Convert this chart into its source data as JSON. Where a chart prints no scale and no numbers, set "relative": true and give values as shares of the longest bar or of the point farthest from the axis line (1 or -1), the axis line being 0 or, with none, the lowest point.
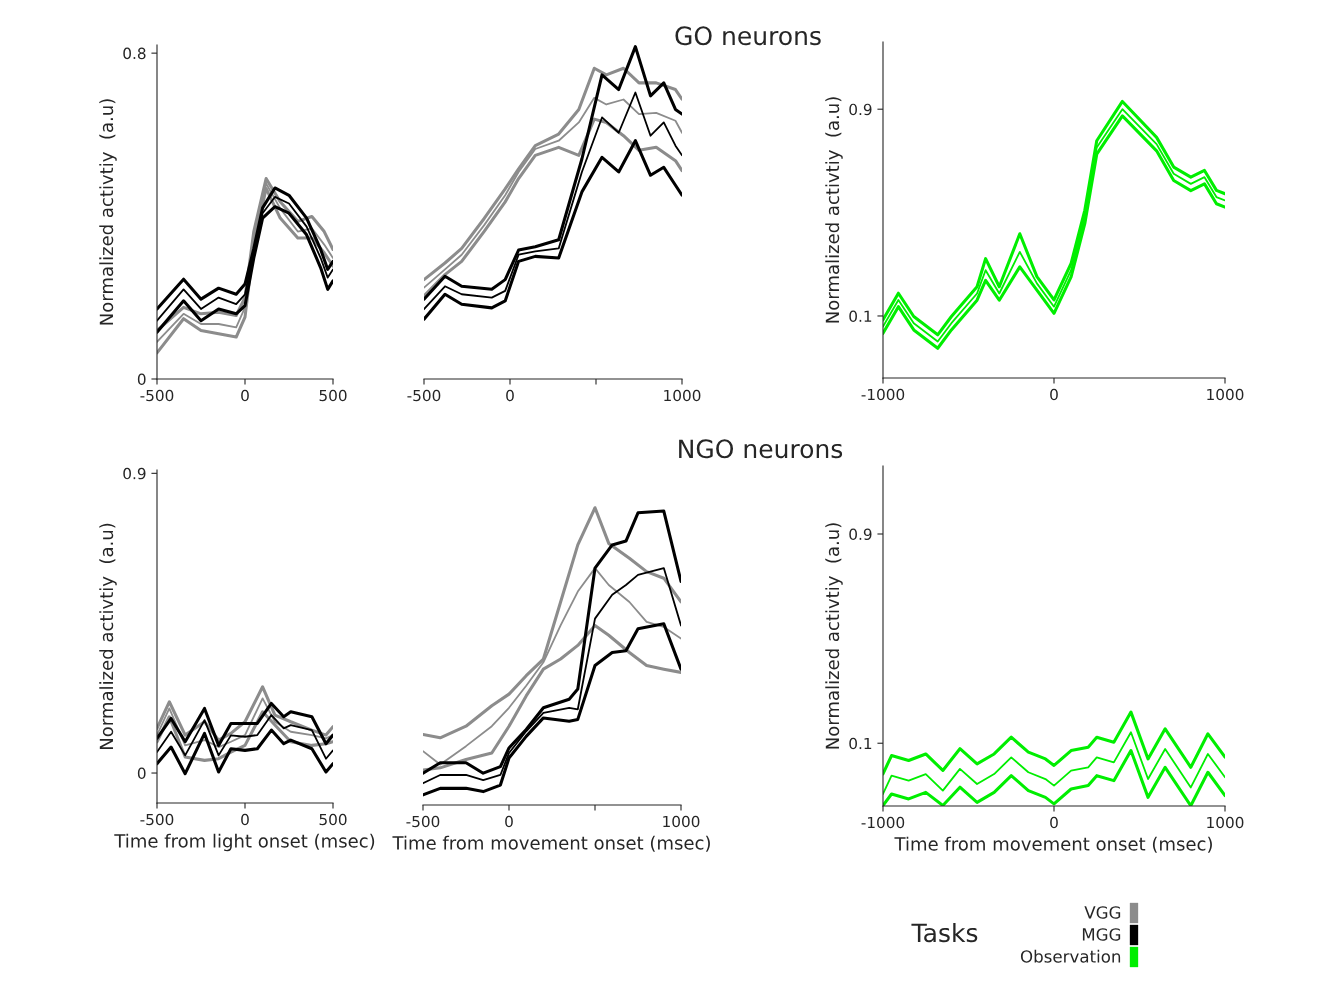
{
  "chart_data": [
    {
      "type": "line",
      "ylabel": "Normalized activtiy  (a.u)",
      "xlim": [
        -500,
        500
      ],
      "ylim": [
        0,
        0.82
      ],
      "xticks": [
        -500,
        0,
        500
      ],
      "yticks": [
        0,
        0.8
      ],
      "grid": false,
      "legend": "bottom right",
      "legend_title": "Tasks",
      "series": [
        {
          "name": "VGG",
          "color": "#8c8c8c",
          "x": [
            -500,
            -349,
            -250,
            -150,
            -50,
            0,
            50,
            120,
            200,
            300,
            380,
            450,
            500
          ],
          "values": [
            0.091,
            0.16,
            0.135,
            0.135,
            0.127,
            0.176,
            0.346,
            0.48,
            0.419,
            0.362,
            0.37,
            0.33,
            0.297
          ]
        },
        {
          "color": "#8c8c8c",
          "x": [
            -500,
            -349,
            -250,
            -150,
            -50,
            0,
            50,
            120,
            200,
            300,
            380,
            450,
            500
          ],
          "values": [
            0.064,
            0.148,
            0.119,
            0.111,
            0.103,
            0.152,
            0.33,
            0.468,
            0.395,
            0.346,
            0.346,
            0.31,
            0.277
          ]
        },
        {
          "color": "#8c8c8c",
          "x": [
            -500,
            -349,
            -250,
            -150,
            -50,
            0,
            50,
            120,
            200,
            300,
            380,
            450,
            500
          ],
          "values": [
            0.119,
            0.176,
            0.16,
            0.164,
            0.156,
            0.2,
            0.362,
            0.492,
            0.435,
            0.387,
            0.399,
            0.362,
            0.318
          ]
        },
        {
          "name": "MGG",
          "color": "#000000",
          "x": [
            -500,
            -349,
            -250,
            -150,
            -50,
            0,
            50,
            100,
            170,
            250,
            350,
            430,
            470,
            500
          ],
          "values": [
            0.143,
            0.22,
            0.172,
            0.2,
            0.184,
            0.208,
            0.314,
            0.407,
            0.447,
            0.431,
            0.374,
            0.297,
            0.249,
            0.269
          ]
        },
        {
          "color": "#000000",
          "x": [
            -500,
            -349,
            -250,
            -150,
            -50,
            0,
            50,
            100,
            170,
            250,
            350,
            430,
            470,
            500
          ],
          "values": [
            0.115,
            0.192,
            0.143,
            0.172,
            0.16,
            0.18,
            0.297,
            0.395,
            0.423,
            0.407,
            0.354,
            0.273,
            0.22,
            0.241
          ]
        },
        {
          "color": "#000000",
          "x": [
            -500,
            -349,
            -250,
            -150,
            -50,
            0,
            50,
            100,
            170,
            250,
            350,
            430,
            470,
            500
          ],
          "values": [
            0.172,
            0.245,
            0.196,
            0.223,
            0.208,
            0.233,
            0.32,
            0.42,
            0.469,
            0.451,
            0.395,
            0.318,
            0.269,
            0.289
          ]
        }
      ]
    },
    {
      "type": "line",
      "title": "GO neurons",
      "relative": true,
      "xlim": [
        -500,
        1000
      ],
      "xticks": [
        -500,
        0,
        {
          "value": 500,
          "label": null
        },
        1000
      ],
      "tick_labels": "x",
      "grid": false,
      "series": [
        {
          "name": "VGG",
          "color": "#8c8c8c",
          "x": [
            -500,
            -378,
            -281,
            -150,
            -28,
            50,
            147,
            283,
            400,
            490,
            560,
            660,
            750,
            850,
            962,
            1000
          ],
          "values": [
            0.275,
            0.33,
            0.374,
            0.463,
            0.553,
            0.623,
            0.692,
            0.717,
            0.772,
            0.846,
            0.826,
            0.841,
            0.797,
            0.801,
            0.777,
            0.741
          ]
        },
        {
          "color": "#8c8c8c",
          "x": [
            -500,
            -378,
            -281,
            -150,
            -28,
            50,
            147,
            283,
            400,
            490,
            560,
            660,
            750,
            850,
            962,
            1000
          ],
          "values": [
            0.25,
            0.314,
            0.354,
            0.444,
            0.533,
            0.603,
            0.673,
            0.697,
            0.673,
            0.782,
            0.772,
            0.732,
            0.688,
            0.697,
            0.657,
            0.627
          ]
        },
        {
          "color": "#8c8c8c",
          "x": [
            -500,
            -378,
            -281,
            -150,
            -28,
            50,
            147,
            283,
            400,
            490,
            560,
            660,
            750,
            850,
            962,
            1000
          ],
          "values": [
            0.299,
            0.349,
            0.393,
            0.483,
            0.572,
            0.632,
            0.702,
            0.737,
            0.811,
            0.935,
            0.915,
            0.935,
            0.891,
            0.891,
            0.871,
            0.842
          ]
        },
        {
          "name": "MGG",
          "color": "#000000",
          "x": [
            -500,
            -378,
            -281,
            -106,
            -28,
            50,
            147,
            283,
            418,
            535,
            632,
            729,
            817,
            894,
            962,
            1000
          ],
          "values": [
            0.21,
            0.279,
            0.255,
            0.245,
            0.265,
            0.374,
            0.384,
            0.393,
            0.623,
            0.787,
            0.741,
            0.862,
            0.732,
            0.772,
            0.702,
            0.673
          ]
        },
        {
          "color": "#000000",
          "x": [
            -500,
            -378,
            -281,
            -106,
            -28,
            50,
            147,
            283,
            418,
            535,
            632,
            729,
            817,
            894,
            962,
            1000
          ],
          "values": [
            0.18,
            0.255,
            0.225,
            0.214,
            0.235,
            0.354,
            0.369,
            0.364,
            0.563,
            0.667,
            0.623,
            0.717,
            0.613,
            0.637,
            0.583,
            0.553
          ]
        },
        {
          "color": "#000000",
          "x": [
            -500,
            -378,
            -281,
            -106,
            -28,
            50,
            147,
            283,
            418,
            535,
            632,
            729,
            817,
            894,
            962,
            1000
          ],
          "values": [
            0.24,
            0.309,
            0.279,
            0.27,
            0.299,
            0.388,
            0.398,
            0.419,
            0.662,
            0.915,
            0.871,
            1,
            0.852,
            0.891,
            0.811,
            0.797
          ]
        }
      ]
    },
    {
      "type": "line",
      "ylabel": "Normalized activtiy  (a.u)",
      "xlim": [
        -1000,
        1000
      ],
      "ylim": [
        -0.14,
        1.16
      ],
      "xticks": [
        -1000,
        0,
        1000
      ],
      "yticks": [
        0.1,
        0.9
      ],
      "grid": false,
      "series": [
        {
          "name": "Observation",
          "color": "#00ee00",
          "x": [
            -1000,
            -910,
            -820,
            -680,
            -600,
            -450,
            -400,
            -320,
            -200,
            -100,
            0,
            100,
            180,
            250,
            400,
            600,
            700,
            800,
            880,
            950,
            1000
          ],
          "values": [
            0.059,
            0.162,
            0.072,
            0.001,
            0.072,
            0.187,
            0.277,
            0.187,
            0.348,
            0.226,
            0.136,
            0.277,
            0.483,
            0.752,
            0.9,
            0.765,
            0.65,
            0.611,
            0.637,
            0.56,
            0.547
          ]
        },
        {
          "color": "#00ee00",
          "x": [
            -1000,
            -910,
            -820,
            -680,
            -600,
            -450,
            -400,
            -320,
            -200,
            -100,
            0,
            100,
            180,
            250,
            400,
            600,
            700,
            800,
            880,
            950,
            1000
          ],
          "values": [
            0.033,
            0.136,
            0.046,
            -0.025,
            0.046,
            0.161,
            0.238,
            0.161,
            0.29,
            0.2,
            0.11,
            0.251,
            0.457,
            0.726,
            0.874,
            0.739,
            0.624,
            0.585,
            0.611,
            0.534,
            0.521
          ]
        },
        {
          "color": "#00ee00",
          "x": [
            -1000,
            -910,
            -820,
            -680,
            -600,
            -450,
            -400,
            -320,
            -200,
            -100,
            0,
            100,
            180,
            250,
            400,
            600,
            700,
            800,
            880,
            950,
            1000
          ],
          "values": [
            0.085,
            0.188,
            0.098,
            0.027,
            0.098,
            0.213,
            0.322,
            0.213,
            0.418,
            0.252,
            0.162,
            0.303,
            0.509,
            0.778,
            0.93,
            0.791,
            0.676,
            0.637,
            0.663,
            0.586,
            0.573
          ]
        }
      ]
    },
    {
      "type": "line",
      "xlabel": "Time from light onset (msec)",
      "ylabel": "Normalized activtiy  (a.u)",
      "xlim": [
        -500,
        500
      ],
      "ylim": [
        -0.09,
        0.91
      ],
      "xticks": [
        -500,
        0,
        500
      ],
      "yticks": [
        0,
        0.9
      ],
      "grid": false,
      "series": [
        {
          "name": "VGG",
          "color": "#8c8c8c",
          "x": [
            -500,
            -430,
            -340,
            -230,
            -150,
            -80,
            0,
            100,
            170,
            260,
            380,
            460,
            500
          ],
          "values": [
            0.114,
            0.194,
            0.083,
            0.099,
            0.078,
            0.094,
            0.114,
            0.224,
            0.154,
            0.124,
            0.114,
            0.104,
            0.114
          ]
        },
        {
          "color": "#8c8c8c",
          "x": [
            -500,
            -430,
            -340,
            -230,
            -150,
            -80,
            0,
            100,
            170,
            260,
            380,
            460,
            500
          ],
          "values": [
            0.094,
            0.169,
            0.048,
            0.038,
            0.043,
            0.063,
            0.083,
            0.184,
            0.144,
            0.094,
            0.083,
            0.088,
            0.094
          ]
        },
        {
          "color": "#8c8c8c",
          "x": [
            -500,
            -430,
            -340,
            -230,
            -150,
            -80,
            0,
            100,
            170,
            260,
            380,
            460,
            500
          ],
          "values": [
            0.134,
            0.214,
            0.114,
            0.154,
            0.099,
            0.119,
            0.154,
            0.259,
            0.174,
            0.154,
            0.129,
            0.114,
            0.139
          ]
        },
        {
          "name": "MGG",
          "color": "#000000",
          "x": [
            -500,
            -420,
            -340,
            -230,
            -150,
            -80,
            0,
            70,
            150,
            220,
            260,
            380,
            460,
            500
          ],
          "values": [
            0.063,
            0.124,
            0.053,
            0.159,
            0.053,
            0.113,
            0.109,
            0.114,
            0.174,
            0.134,
            0.144,
            0.129,
            0.043,
            0.068
          ]
        },
        {
          "color": "#000000",
          "x": [
            -500,
            -420,
            -340,
            -230,
            -150,
            -80,
            0,
            70,
            150,
            220,
            260,
            380,
            460,
            500
          ],
          "values": [
            0.028,
            0.078,
            -0.002,
            0.119,
            0.003,
            0.073,
            0.068,
            0.073,
            0.129,
            0.088,
            0.099,
            0.073,
            0.003,
            0.028
          ]
        },
        {
          "color": "#000000",
          "x": [
            -500,
            -420,
            -340,
            -230,
            -150,
            -80,
            0,
            70,
            150,
            220,
            260,
            380,
            460,
            500
          ],
          "values": [
            0.104,
            0.164,
            0.094,
            0.194,
            0.083,
            0.149,
            0.149,
            0.149,
            0.209,
            0.169,
            0.184,
            0.169,
            0.088,
            0.114
          ]
        }
      ]
    },
    {
      "type": "line",
      "title": "NGO neurons",
      "relative": true,
      "xlabel": "Time from movement onset (msec)",
      "xlim": [
        -500,
        1000
      ],
      "xticks": [
        -500,
        0,
        {
          "value": 500,
          "label": null
        },
        1000
      ],
      "tick_labels": "x",
      "grid": false,
      "series": [
        {
          "name": "VGG",
          "color": "#8c8c8c",
          "x": [
            -500,
            -400,
            -250,
            -100,
            0,
            100,
            200,
            300,
            400,
            500,
            580,
            700,
            800,
            900,
            1000
          ],
          "values": [
            0.181,
            0.136,
            0.198,
            0.265,
            0.327,
            0.401,
            0.48,
            0.604,
            0.718,
            0.797,
            0.74,
            0.683,
            0.616,
            0.599,
            0.56
          ]
        },
        {
          "color": "#8c8c8c",
          "x": [
            -500,
            -400,
            -250,
            -100,
            0,
            100,
            200,
            300,
            400,
            500,
            580,
            700,
            800,
            900,
            1000
          ],
          "values": [
            0.118,
            0.125,
            0.153,
            0.175,
            0.265,
            0.367,
            0.457,
            0.491,
            0.537,
            0.604,
            0.571,
            0.513,
            0.469,
            0.457,
            0.446
          ]
        },
        {
          "color": "#8c8c8c",
          "x": [
            -500,
            -400,
            -250,
            -100,
            0,
            100,
            200,
            300,
            400,
            500,
            580,
            700,
            800,
            900,
            1000
          ],
          "values": [
            0.237,
            0.226,
            0.265,
            0.334,
            0.373,
            0.435,
            0.491,
            0.683,
            0.875,
            1,
            0.88,
            0.83,
            0.785,
            0.763,
            0.683
          ]
        },
        {
          "name": "MGG",
          "color": "#000000",
          "x": [
            -500,
            -400,
            -250,
            -150,
            -50,
            0,
            100,
            200,
            350,
            400,
            500,
            600,
            680,
            750,
            900,
            1000
          ],
          "values": [
            0.073,
            0.101,
            0.101,
            0.084,
            0.101,
            0.175,
            0.248,
            0.31,
            0.327,
            0.322,
            0.627,
            0.707,
            0.74,
            0.774,
            0.797,
            0.604
          ]
        },
        {
          "color": "#000000",
          "x": [
            -500,
            -400,
            -250,
            -150,
            -50,
            0,
            100,
            200,
            350,
            400,
            500,
            600,
            680,
            750,
            900,
            1000
          ],
          "values": [
            0.034,
            0.056,
            0.056,
            0.045,
            0.067,
            0.158,
            0.231,
            0.293,
            0.282,
            0.288,
            0.469,
            0.513,
            0.519,
            0.593,
            0.61,
            0.457
          ]
        },
        {
          "color": "#000000",
          "x": [
            -500,
            -400,
            -250,
            -150,
            -50,
            0,
            100,
            200,
            350,
            400,
            500,
            600,
            680,
            750,
            900,
            1000
          ],
          "values": [
            0.107,
            0.142,
            0.142,
            0.107,
            0.129,
            0.192,
            0.254,
            0.327,
            0.356,
            0.39,
            0.797,
            0.875,
            0.888,
            0.983,
            0.989,
            0.752
          ]
        }
      ]
    },
    {
      "type": "line",
      "xlabel": "Time from movement onset (msec)",
      "ylabel": "Normalized activtiy  (a.u)",
      "xlim": [
        -1000,
        1000
      ],
      "ylim": [
        -0.14,
        1.16
      ],
      "xticks": [
        -1000,
        0,
        1000
      ],
      "yticks": [
        0.1,
        0.9
      ],
      "grid": false,
      "series": [
        {
          "name": "Observation",
          "color": "#00ee00",
          "x": [
            -1000,
            -950,
            -850,
            -750,
            -650,
            -550,
            -450,
            -350,
            -250,
            -150,
            -50,
            0,
            100,
            200,
            250,
            350,
            450,
            550,
            650,
            800,
            900,
            1000
          ],
          "values": [
            -0.094,
            -0.024,
            -0.043,
            -0.018,
            -0.081,
            0.002,
            -0.056,
            -0.018,
            0.046,
            -0.011,
            -0.037,
            -0.062,
            -0.005,
            0.008,
            0.046,
            0.027,
            0.142,
            -0.037,
            0.078,
            -0.069,
            0.059,
            -0.03
          ]
        },
        {
          "color": "#00ee00",
          "x": [
            -1000,
            -950,
            -850,
            -750,
            -650,
            -550,
            -450,
            -350,
            -250,
            -150,
            -50,
            0,
            100,
            200,
            250,
            350,
            450,
            550,
            650,
            800,
            900,
            1000
          ],
          "values": [
            -0.138,
            -0.094,
            -0.113,
            -0.088,
            -0.138,
            -0.068,
            -0.126,
            -0.088,
            -0.024,
            -0.081,
            -0.107,
            -0.132,
            -0.075,
            -0.062,
            -0.024,
            -0.043,
            0.072,
            -0.107,
            0.008,
            -0.139,
            -0.011,
            -0.1
          ]
        },
        {
          "color": "#00ee00",
          "x": [
            -1000,
            -950,
            -850,
            -750,
            -650,
            -550,
            -450,
            -350,
            -250,
            -150,
            -50,
            0,
            100,
            200,
            250,
            350,
            450,
            550,
            650,
            800,
            900,
            1000
          ],
          "values": [
            -0.017,
            0.053,
            0.034,
            0.059,
            -0.004,
            0.079,
            0.021,
            0.059,
            0.123,
            0.066,
            0.04,
            0.015,
            0.072,
            0.085,
            0.123,
            0.104,
            0.219,
            0.04,
            0.155,
            0.008,
            0.136,
            0.047
          ]
        }
      ]
    }
  ]
}
